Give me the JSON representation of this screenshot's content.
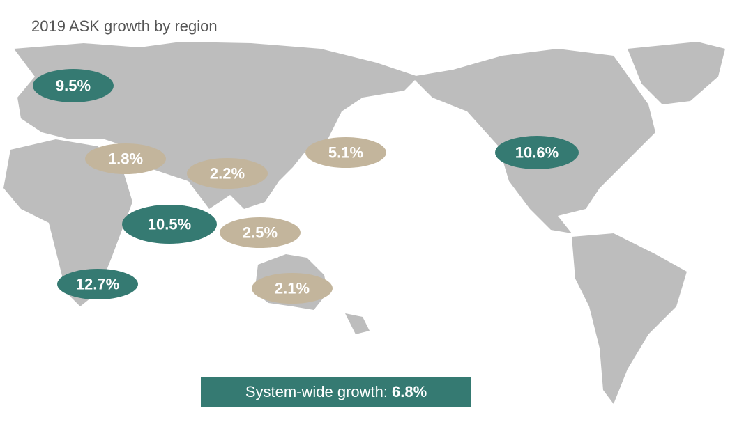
{
  "title": "2019 ASK growth by region",
  "regions": [
    {
      "label": "9.5%",
      "color": "#357a72"
    },
    {
      "label": "1.8%",
      "color": "#c3b59c"
    },
    {
      "label": "2.2%",
      "color": "#c3b59c"
    },
    {
      "label": "5.1%",
      "color": "#c3b59c"
    },
    {
      "label": "10.6%",
      "color": "#357a72"
    },
    {
      "label": "10.5%",
      "color": "#357a72"
    },
    {
      "label": "2.5%",
      "color": "#c3b59c"
    },
    {
      "label": "12.7%",
      "color": "#357a72"
    },
    {
      "label": "2.1%",
      "color": "#c3b59c"
    }
  ],
  "summary": {
    "label": "System-wide growth:",
    "value": "6.8%",
    "color": "#357a72"
  }
}
